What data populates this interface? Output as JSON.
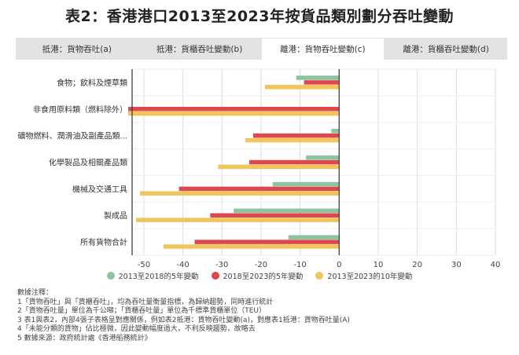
{
  "title": "表2：香港港口2013至2023年按貨品類別劃分吞吐變動",
  "tabs": [
    {
      "label": "抵港：貨物吞吐(a)",
      "active": false
    },
    {
      "label": "抵港：貨櫃吞吐變動(b)",
      "active": false
    },
    {
      "label": "離港：貨物吞吐變動(c)",
      "active": true
    },
    {
      "label": "離港：貨櫃吞吐變動(d)",
      "active": false
    }
  ],
  "colors": {
    "series1": "#8cc4a0",
    "series2": "#e0474c",
    "series3": "#f2c55c",
    "axis": "#333333",
    "grid": "#dddddd"
  },
  "chart_data": {
    "type": "bar",
    "orientation": "horizontal",
    "categories": [
      "食物；飲料及煙草類",
      "非食用原料類（燃料除外）",
      "礦物燃料、潤滑油及副產品類...",
      "化學製品及相關產品類",
      "機械及交通工具",
      "製成品",
      "所有貨物合計"
    ],
    "series": [
      {
        "name": "2013至2018的5年變動",
        "values": [
          -11,
          0,
          -2,
          -8.5,
          -17,
          -27,
          -13
        ]
      },
      {
        "name": "2018至2023的5年變動",
        "values": [
          -9,
          -54,
          -22,
          -23,
          -41,
          -33,
          -37
        ]
      },
      {
        "name": "2013至2023的10年變動",
        "values": [
          -19,
          -54,
          -24,
          -31,
          -51,
          -52,
          -45
        ]
      }
    ],
    "xlim": [
      -53,
      40
    ],
    "xticks": [
      -50,
      -40,
      -30,
      -20,
      -10,
      0,
      10,
      20,
      30,
      40
    ],
    "grid": true,
    "legend_position": "bottom"
  },
  "notes_title": "數據注釋：",
  "notes": [
    "1「貨物吞吐」與「貨櫃吞吐」，均為吞吐量衡量指標，為歸納趨勢，同時進行統計",
    "2「貨物吞吐量」單位為千公噸；「貨櫃吞吐量」單位為千標準貨櫃單位（TEU）",
    "3 表1與表2，內部4張子表格呈對應關係，例如表2抵港：貨物吞吐變動(a)，對應表1抵港：貨物吞吐量(A)",
    "4「未能分類的貨物」佔比極微，因此變動幅度過大，不利反映趨勢，故略去",
    "5 數據來源：政府統計處《香港船務統計》"
  ]
}
